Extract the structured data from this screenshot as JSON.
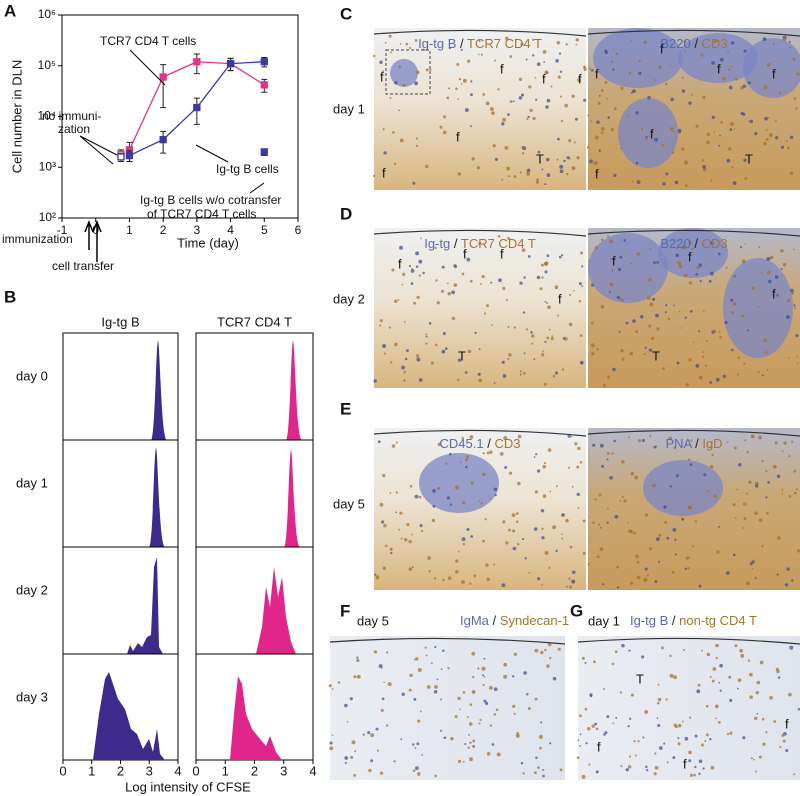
{
  "chart_data": {
    "type": "line",
    "letter": "A",
    "log_y": true,
    "ylabel": "Cell number in DLN",
    "xlabel": "Time (day)",
    "xlim": [
      -1,
      6
    ],
    "ylim": [
      100,
      1000000
    ],
    "xticks": [
      -1,
      0,
      1,
      2,
      3,
      4,
      5,
      6
    ],
    "yticks": [
      {
        "value": 100,
        "label": "10²"
      },
      {
        "value": 1000,
        "label": "10³"
      },
      {
        "value": 10000,
        "label": "10⁴"
      },
      {
        "value": 100000,
        "label": "10⁵"
      },
      {
        "value": 1000000,
        "label": "10⁶"
      }
    ],
    "series": [
      {
        "name": "TCR7 CD4 T cells",
        "color": "#e0338a",
        "x": [
          1,
          2,
          3,
          4,
          5
        ],
        "values": [
          2200,
          60000,
          120000,
          110000,
          42000
        ],
        "errors": [
          900,
          45000,
          50000,
          30000,
          12000
        ]
      },
      {
        "name": "Ig-tg B cells",
        "color": "#3a3aa0",
        "x": [
          1,
          2,
          3,
          4,
          5
        ],
        "values": [
          1700,
          3500,
          15000,
          110000,
          120000
        ],
        "errors": [
          400,
          1600,
          8000,
          30000,
          25000
        ]
      },
      {
        "color": "#e0338a",
        "x": [
          0.75
        ],
        "values": [
          1800
        ],
        "errors": [
          400
        ],
        "open": true
      },
      {
        "color": "#3a3aa0",
        "x": [
          0.75
        ],
        "values": [
          1600
        ],
        "errors": [
          300
        ],
        "open": true
      },
      {
        "color": "#3a3aa0",
        "x": [
          5
        ],
        "values": [
          2000
        ],
        "errors": [
          300
        ]
      }
    ],
    "annotations": [
      {
        "lines": [
          "no immuni-",
          "zation"
        ]
      },
      {
        "lines": [
          "Ig-tg B cells w/o cotransfer",
          "of TCR7 CD4 T cells"
        ]
      },
      {
        "lines": [
          "immunization"
        ]
      },
      {
        "lines": [
          "cell transfer"
        ]
      }
    ]
  },
  "panel_b": {
    "letter": "B",
    "columns": [
      "Ig-tg B",
      "TCR7 CD4 T"
    ],
    "rows": [
      "day 0",
      "day 1",
      "day 2",
      "day 3"
    ],
    "xticks": [
      0,
      1,
      2,
      3,
      4
    ],
    "xlabel": "Log intensity of CFSE"
  },
  "micrographs": [
    {
      "letter": "C",
      "day": "day 1",
      "images": [
        {
          "stain": [
            "Ig-tg B",
            "/",
            "TCR7 CD4 T"
          ],
          "labels": [
            "f",
            "f",
            "f",
            "f",
            "f",
            "T",
            "f"
          ]
        },
        {
          "stain": [
            "B220",
            "/",
            "CD3"
          ],
          "labels": [
            "f",
            "f",
            "f",
            "f",
            "f",
            "T",
            "f"
          ]
        }
      ]
    },
    {
      "letter": "D",
      "day": "day 2",
      "images": [
        {
          "stain": [
            "Ig-tg",
            "/",
            "TCR7 CD4 T"
          ],
          "labels": [
            "f",
            "f",
            "f",
            "f",
            "T"
          ]
        },
        {
          "stain": [
            "B220",
            "/",
            "CD3"
          ],
          "labels": [
            "f",
            "f",
            "f",
            "T"
          ]
        }
      ]
    },
    {
      "letter": "E",
      "day": "day 5",
      "images": [
        {
          "stain": [
            "CD45.1",
            "/",
            "CD3"
          ]
        },
        {
          "stain": [
            "PNA",
            "/",
            "IgD"
          ]
        }
      ]
    },
    {
      "letter": "F",
      "day": "day 5",
      "images": [
        {
          "stain": [
            "IgMa",
            "/",
            "Syndecan-1"
          ]
        }
      ]
    },
    {
      "letter": "G",
      "day": "day 1",
      "images": [
        {
          "stain": [
            "Ig-tg B",
            "/",
            "non-tg CD4 T"
          ],
          "labels": [
            "T",
            "f",
            "f",
            "f"
          ]
        }
      ]
    }
  ]
}
